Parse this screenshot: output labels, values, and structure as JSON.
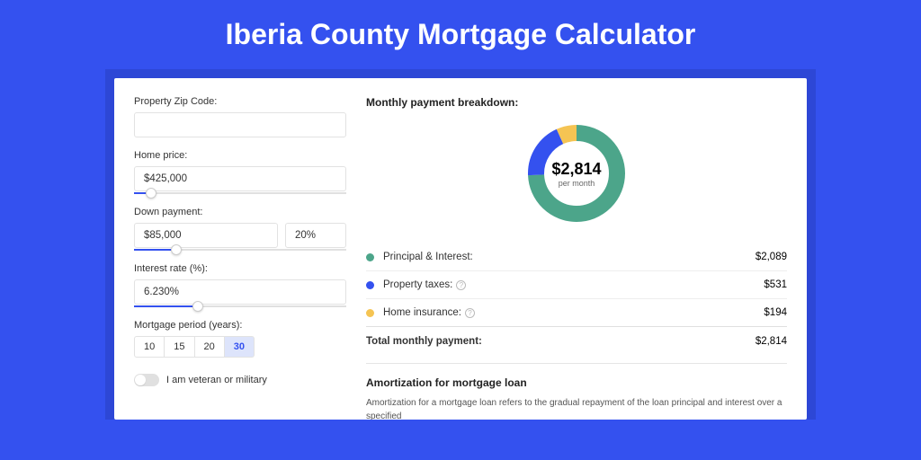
{
  "page_title": "Iberia County Mortgage Calculator",
  "colors": {
    "background": "#3451ef",
    "shadow_panel": "#2d47d6",
    "panel_bg": "#ffffff",
    "accent": "#3451ef",
    "border": "#e2e2e2"
  },
  "left": {
    "zip": {
      "label": "Property Zip Code:",
      "value": ""
    },
    "home_price": {
      "label": "Home price:",
      "value": "$425,000",
      "slider_pct": 8
    },
    "down_payment": {
      "label": "Down payment:",
      "amount": "$85,000",
      "percent": "20%",
      "slider_pct": 20
    },
    "interest": {
      "label": "Interest rate (%):",
      "value": "6.230%",
      "slider_pct": 30
    },
    "period": {
      "label": "Mortgage period (years):",
      "options": [
        "10",
        "15",
        "20",
        "30"
      ],
      "selected": "30"
    },
    "veteran": {
      "label": "I am veteran or military",
      "on": false
    }
  },
  "right": {
    "breakdown_title": "Monthly payment breakdown:",
    "donut": {
      "amount": "$2,814",
      "sub": "per month",
      "slices": [
        {
          "key": "principal_interest",
          "label": "Principal & Interest:",
          "value": "$2,089",
          "num": 2089,
          "color": "#4ca58a"
        },
        {
          "key": "property_taxes",
          "label": "Property taxes:",
          "value": "$531",
          "num": 531,
          "color": "#3451ef",
          "info": true
        },
        {
          "key": "home_insurance",
          "label": "Home insurance:",
          "value": "$194",
          "num": 194,
          "color": "#f5c453",
          "info": true
        }
      ],
      "total": 2814,
      "stroke_width": 18
    },
    "total_row": {
      "label": "Total monthly payment:",
      "value": "$2,814"
    },
    "amortization": {
      "title": "Amortization for mortgage loan",
      "text": "Amortization for a mortgage loan refers to the gradual repayment of the loan principal and interest over a specified"
    }
  }
}
